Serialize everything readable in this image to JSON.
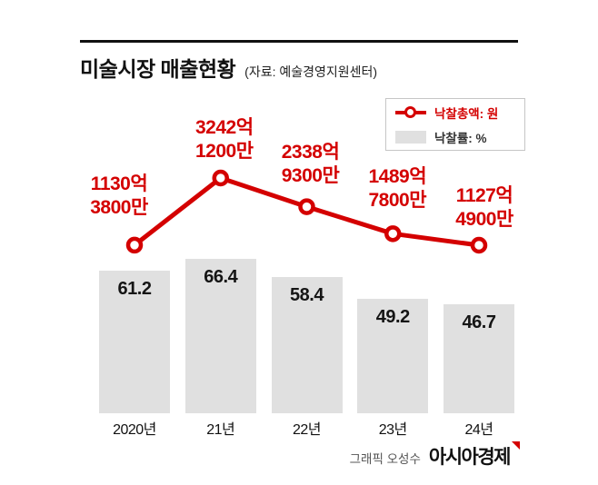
{
  "header": {
    "title": "미술시장 매출현황",
    "source": "(자료: 예술경영지원센터)"
  },
  "legend": {
    "line_label": "낙찰총액: 원",
    "bar_label": "낙찰률: %"
  },
  "chart_data": {
    "type": "bar+line",
    "categories": [
      "2020년",
      "21년",
      "22년",
      "23년",
      "24년"
    ],
    "series": [
      {
        "name": "낙찰총액: 원",
        "type": "line",
        "unit": "억원",
        "values": [
          1130.38,
          3242.12,
          2338.93,
          1489.78,
          1127.49
        ],
        "labels": [
          [
            "1130억",
            "3800만"
          ],
          [
            "3242억",
            "1200만"
          ],
          [
            "2338억",
            "9300만"
          ],
          [
            "1489억",
            "7800만"
          ],
          [
            "1127억",
            "4900만"
          ]
        ]
      },
      {
        "name": "낙찰률: %",
        "type": "bar",
        "unit": "%",
        "values": [
          61.2,
          66.4,
          58.4,
          49.2,
          46.7
        ]
      }
    ],
    "colors": {
      "line": "#d40000",
      "bar": "#e0e0e0"
    },
    "legend_position": "top-right",
    "grid": false
  },
  "footer": {
    "credit": "그래픽 오성수",
    "brand": "아시아경제"
  }
}
